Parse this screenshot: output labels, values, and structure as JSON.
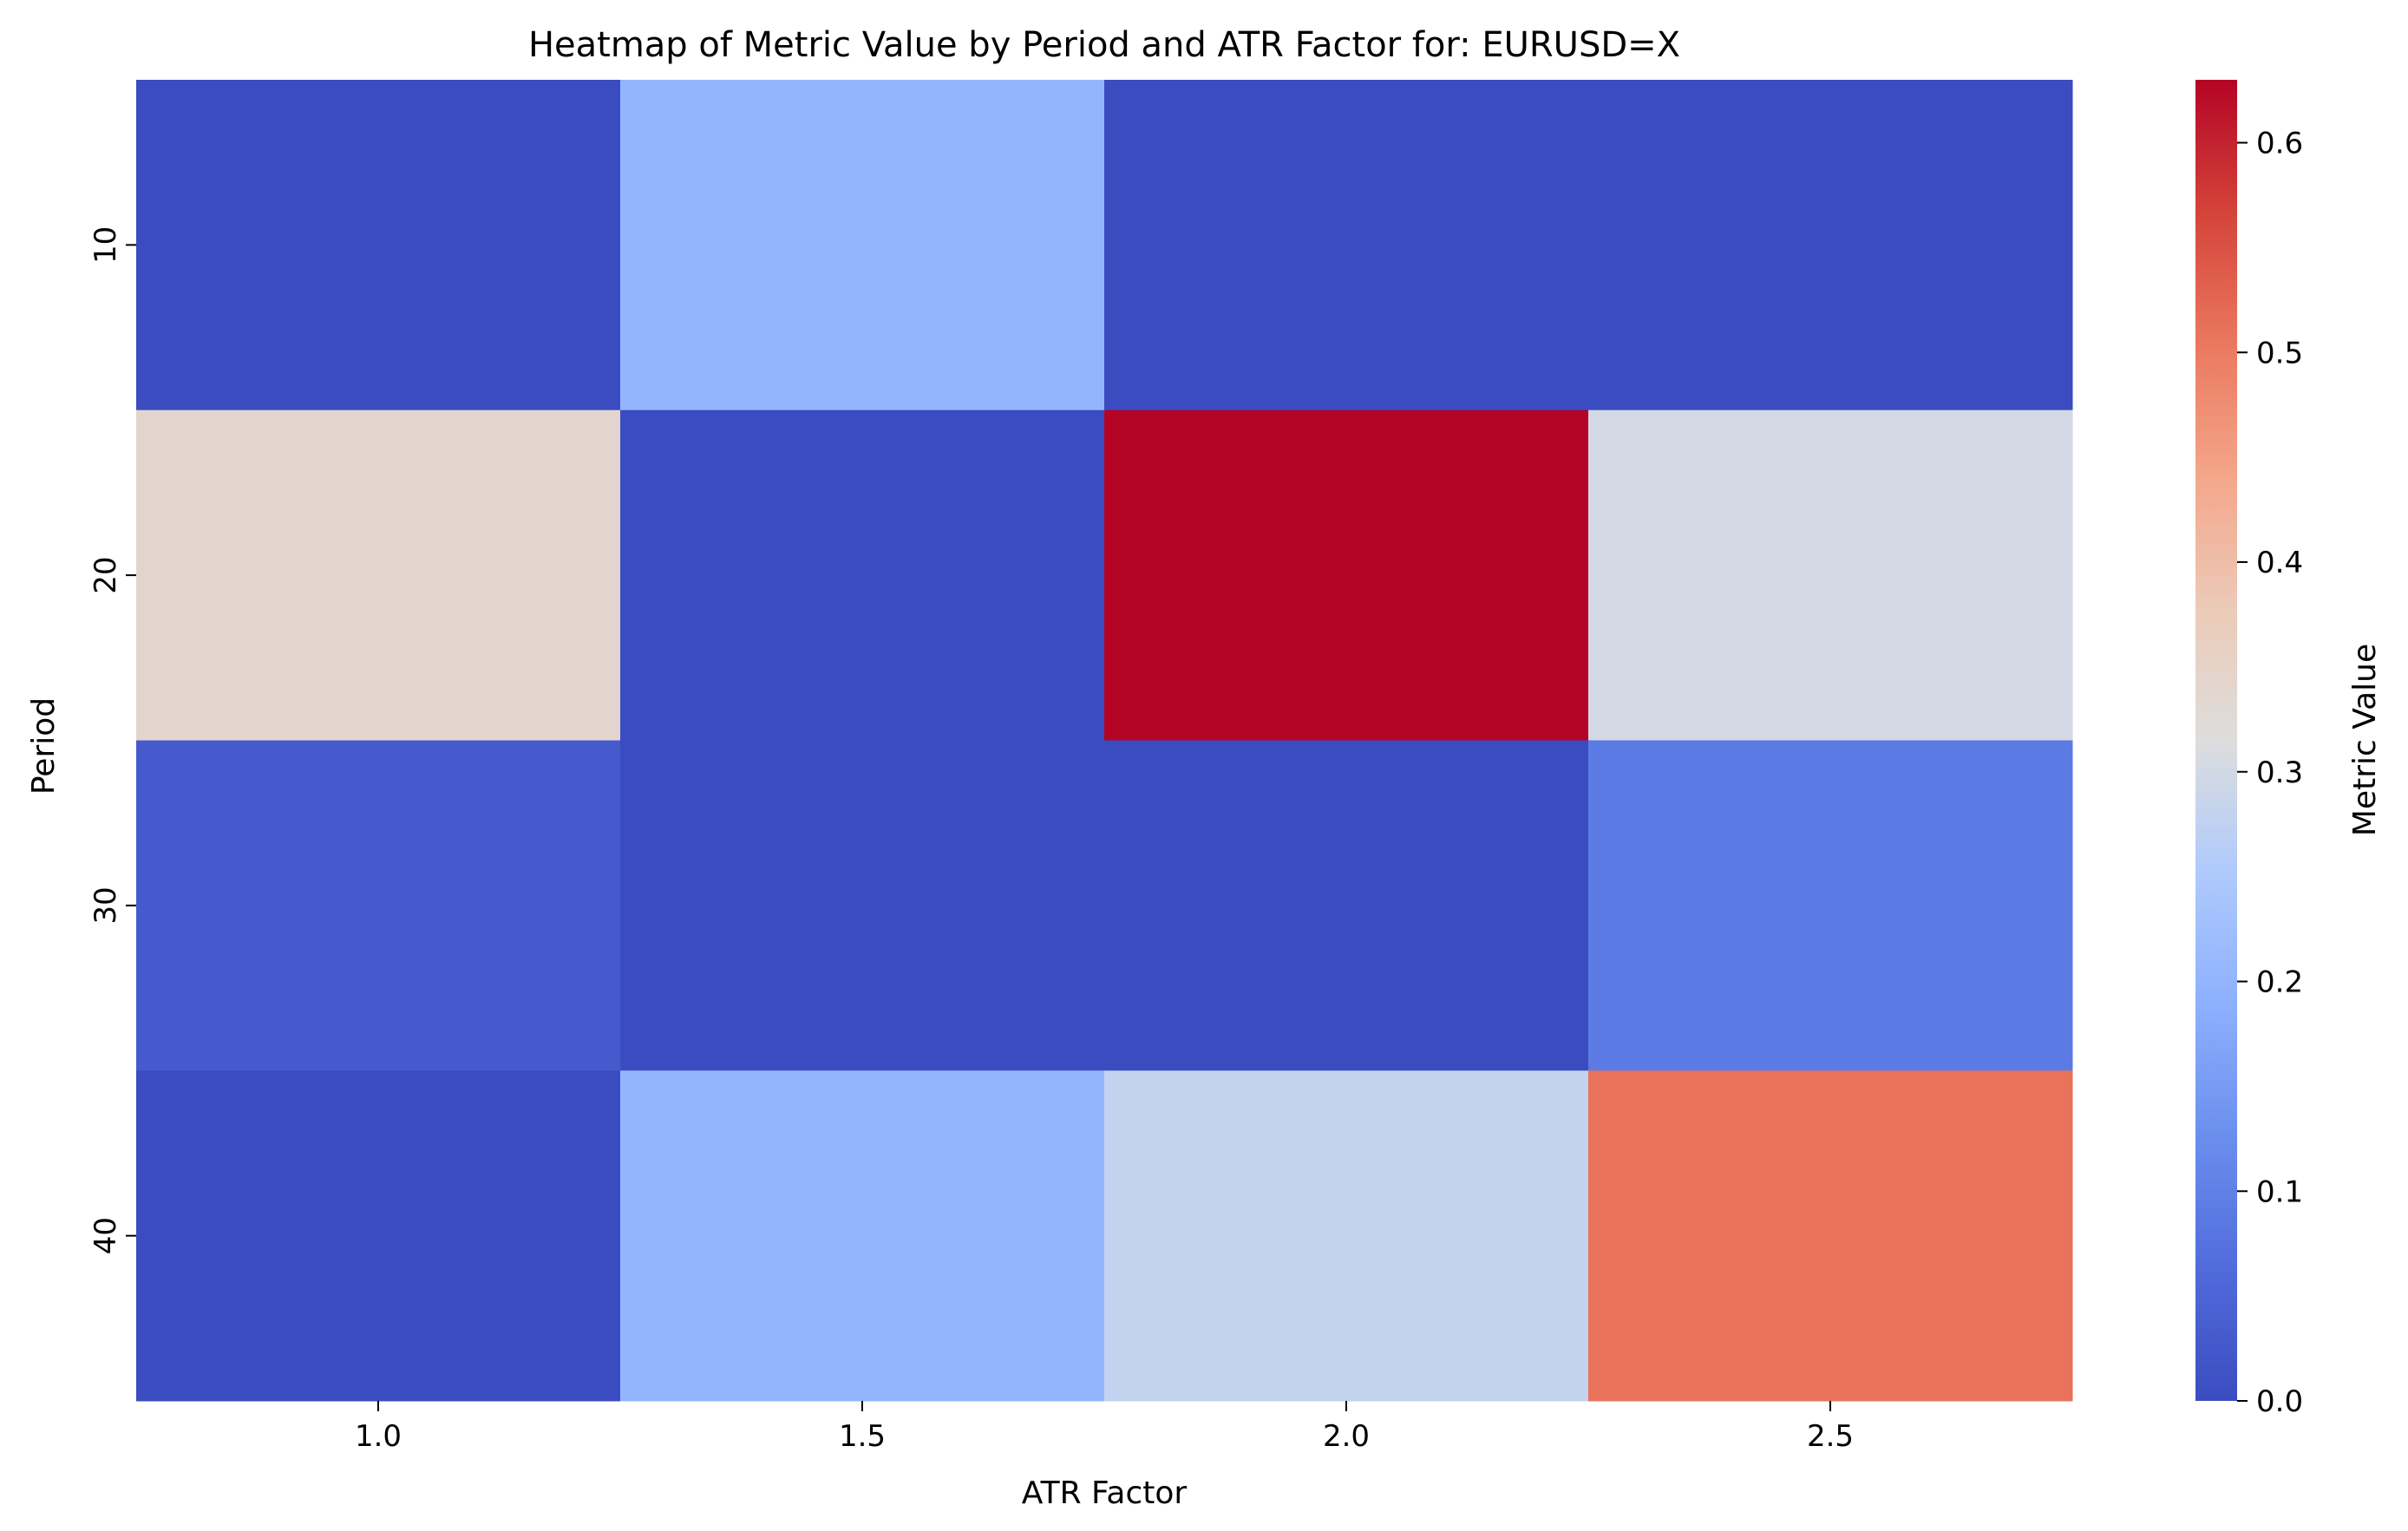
{
  "chart_data": {
    "type": "heatmap",
    "title": "Heatmap of Metric Value by Period and ATR Factor for: EURUSD=X",
    "xlabel": "ATR Factor",
    "ylabel": "Period",
    "x_categories": [
      "1.0",
      "1.5",
      "2.0",
      "2.5"
    ],
    "y_categories": [
      "10",
      "20",
      "30",
      "40"
    ],
    "values": [
      [
        0.0,
        0.2,
        0.0,
        0.0
      ],
      [
        0.34,
        0.0,
        0.63,
        0.3
      ],
      [
        0.03,
        0.0,
        0.0,
        0.09
      ],
      [
        0.0,
        0.2,
        0.28,
        0.51
      ]
    ],
    "colorbar": {
      "label": "Metric Value",
      "range": [
        0.0,
        0.63
      ],
      "ticks": [
        "0.0",
        "0.1",
        "0.2",
        "0.3",
        "0.4",
        "0.5",
        "0.6"
      ],
      "colormap": "coolwarm",
      "low_color": "#3b4cc0",
      "mid_color": "#dddddd",
      "high_color": "#b40426"
    }
  }
}
